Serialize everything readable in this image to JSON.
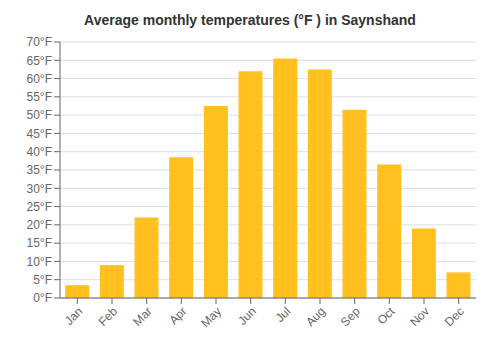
{
  "chart_data": {
    "type": "bar",
    "title": "Average monthly temperatures (°F ) in Saynshand",
    "categories": [
      "Jan",
      "Feb",
      "Mar",
      "Apr",
      "May",
      "Jun",
      "Jul",
      "Aug",
      "Sep",
      "Oct",
      "Nov",
      "Dec"
    ],
    "values": [
      3.5,
      9.0,
      22.0,
      38.5,
      52.5,
      62.0,
      65.5,
      62.5,
      51.5,
      36.5,
      19.0,
      7.0
    ],
    "color": "#FFC020",
    "ylim": [
      0,
      70
    ],
    "yticks": [
      {
        "value": 0,
        "label": "0°F"
      },
      {
        "value": 5,
        "label": "5°F"
      },
      {
        "value": 10,
        "label": "10°F"
      },
      {
        "value": 15,
        "label": "15°F"
      },
      {
        "value": 20,
        "label": "20°F"
      },
      {
        "value": 25,
        "label": "25°F"
      },
      {
        "value": 30,
        "label": "30°F"
      },
      {
        "value": 35,
        "label": "35°F"
      },
      {
        "value": 40,
        "label": "40°F"
      },
      {
        "value": 45,
        "label": "45°F"
      },
      {
        "value": 50,
        "label": "50°F"
      },
      {
        "value": 55,
        "label": "55°F"
      },
      {
        "value": 60,
        "label": "60°F"
      },
      {
        "value": 65,
        "label": "65°F"
      },
      {
        "value": 70,
        "label": "70°F"
      }
    ],
    "grid": true
  }
}
